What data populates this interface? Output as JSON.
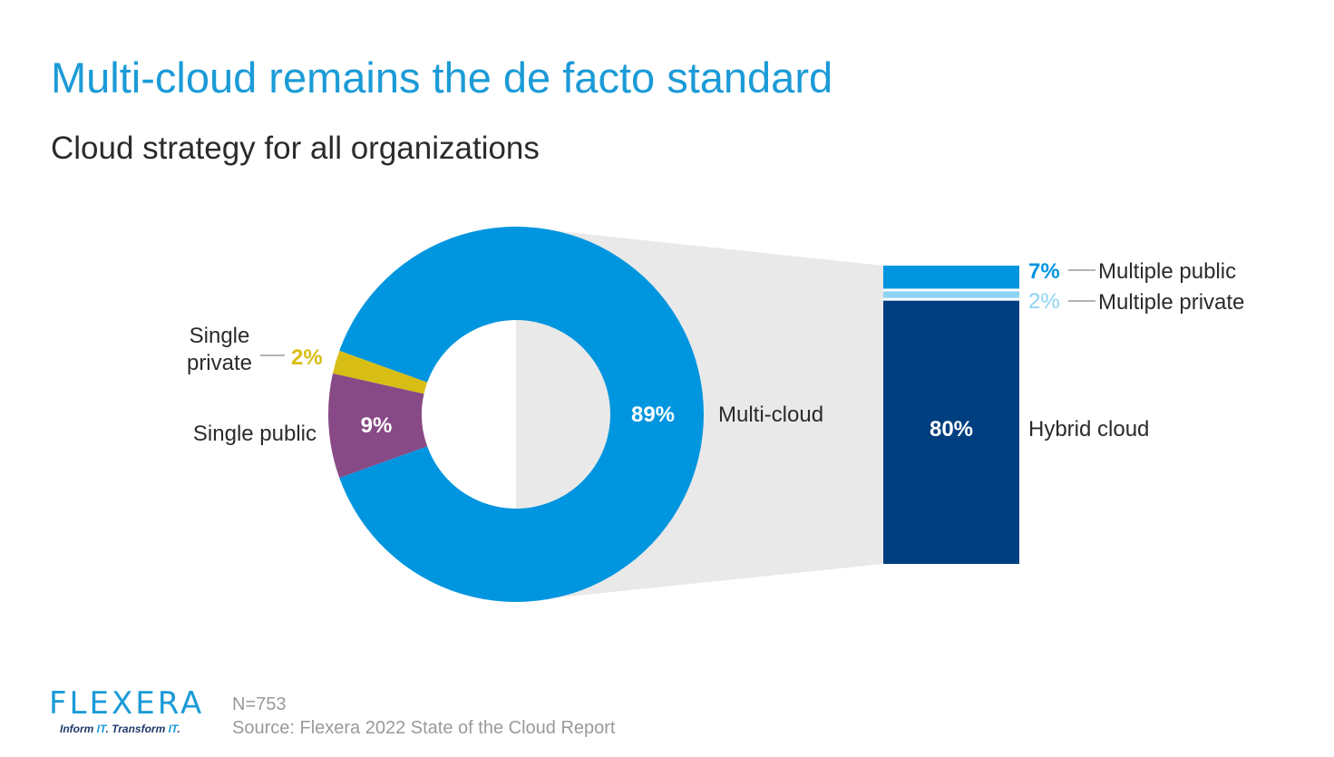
{
  "title": "Multi-cloud remains the de facto standard",
  "subtitle": "Cloud strategy for all organizations",
  "chart_data": {
    "type": "donut-with-breakdown",
    "unit": "%",
    "donut": {
      "slices": [
        {
          "label": "Multi-cloud",
          "value": 89,
          "value_label": "89%",
          "color": "#0095df"
        },
        {
          "label": "Single public",
          "value": 9,
          "value_label": "9%",
          "color": "#884a86"
        },
        {
          "label_lines": [
            "Single",
            "private"
          ],
          "value": 2,
          "value_label": "2%",
          "color": "#d8bd14"
        }
      ]
    },
    "breakdown": {
      "of": "Multi-cloud",
      "segments": [
        {
          "label": "Multiple public",
          "value": 7,
          "value_label": "7%",
          "color": "#0095df"
        },
        {
          "label": "Multiple private",
          "value": 2,
          "value_label": "2%",
          "color": "#8dd3f3"
        },
        {
          "label": "Hybrid cloud",
          "value": 80,
          "value_label": "80%",
          "color": "#003f7f"
        }
      ]
    }
  },
  "footer": {
    "logo_text": "FLEXERA",
    "tagline_parts": [
      "Inform ",
      "IT",
      ". Transform ",
      "IT",
      "."
    ],
    "n_label": "N=753",
    "source": "Source: Flexera 2022 State of the Cloud Report"
  },
  "colors": {
    "title": "#1b9bd7",
    "connector": "#e9e9e9",
    "footer_text": "#9a9a9a"
  }
}
